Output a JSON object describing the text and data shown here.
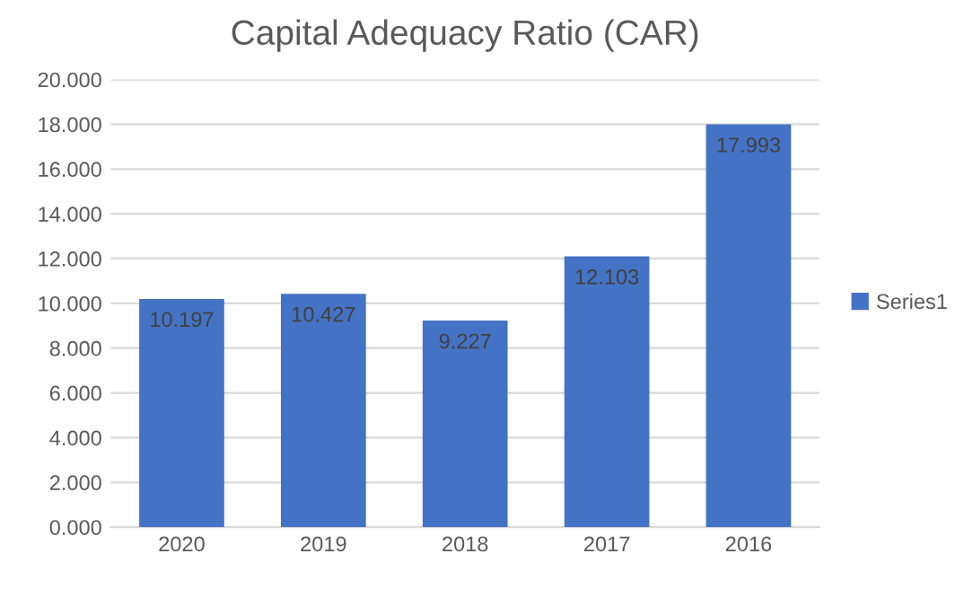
{
  "chart_data": {
    "type": "bar",
    "title": "Capital Adequacy Ratio (CAR)",
    "categories": [
      "2020",
      "2019",
      "2018",
      "2017",
      "2016"
    ],
    "series": [
      {
        "name": "Series1",
        "color": "#4472c4",
        "values": [
          10.197,
          10.427,
          9.227,
          12.103,
          17.993
        ]
      }
    ],
    "ylim": [
      0,
      20
    ],
    "yticks": [
      {
        "value": 0,
        "label": "0.000"
      },
      {
        "value": 2,
        "label": "2.000"
      },
      {
        "value": 4,
        "label": "4.000"
      },
      {
        "value": 6,
        "label": "6.000"
      },
      {
        "value": 8,
        "label": "8.000"
      },
      {
        "value": 10,
        "label": "10.000"
      },
      {
        "value": 12,
        "label": "12.000"
      },
      {
        "value": 14,
        "label": "14.000"
      },
      {
        "value": 16,
        "label": "16.000"
      },
      {
        "value": 18,
        "label": "18.000"
      },
      {
        "value": 20,
        "label": "20.000"
      }
    ],
    "grid": "y",
    "legend": "right",
    "data_labels": true
  }
}
